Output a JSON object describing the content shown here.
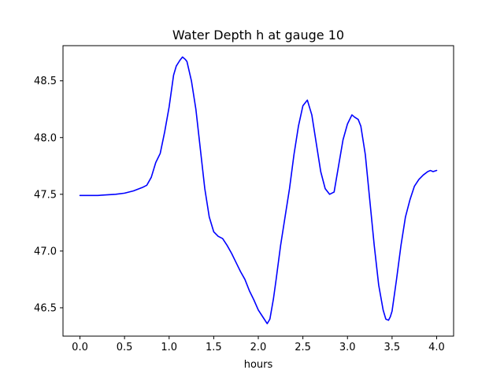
{
  "chart_data": {
    "type": "line",
    "title": "Water Depth h at gauge 10",
    "xlabel": "hours",
    "ylabel": "",
    "xlim": [
      -0.19,
      4.19
    ],
    "ylim": [
      46.25,
      48.81
    ],
    "xticks": [
      0.0,
      0.5,
      1.0,
      1.5,
      2.0,
      2.5,
      3.0,
      3.5,
      4.0
    ],
    "xtick_labels": [
      "0.0",
      "0.5",
      "1.0",
      "1.5",
      "2.0",
      "2.5",
      "3.0",
      "3.5",
      "4.0"
    ],
    "yticks": [
      46.5,
      47.0,
      47.5,
      48.0,
      48.5
    ],
    "ytick_labels": [
      "46.5",
      "47.0",
      "47.5",
      "48.0",
      "48.5"
    ],
    "grid": false,
    "legend": "none",
    "series": [
      {
        "color": "#0000ff",
        "x": [
          0.0,
          0.2,
          0.4,
          0.5,
          0.6,
          0.7,
          0.75,
          0.8,
          0.85,
          0.9,
          0.95,
          1.0,
          1.05,
          1.08,
          1.12,
          1.15,
          1.18,
          1.2,
          1.25,
          1.3,
          1.35,
          1.4,
          1.45,
          1.5,
          1.55,
          1.6,
          1.65,
          1.7,
          1.75,
          1.8,
          1.85,
          1.9,
          1.95,
          2.0,
          2.05,
          2.1,
          2.13,
          2.17,
          2.2,
          2.25,
          2.3,
          2.35,
          2.4,
          2.45,
          2.5,
          2.55,
          2.6,
          2.65,
          2.7,
          2.75,
          2.8,
          2.85,
          2.9,
          2.95,
          3.0,
          3.05,
          3.08,
          3.12,
          3.15,
          3.2,
          3.25,
          3.3,
          3.35,
          3.4,
          3.43,
          3.46,
          3.48,
          3.5,
          3.55,
          3.6,
          3.65,
          3.7,
          3.75,
          3.8,
          3.85,
          3.9,
          3.93,
          3.96,
          4.0
        ],
        "y": [
          47.49,
          47.49,
          47.5,
          47.51,
          47.53,
          47.56,
          47.58,
          47.65,
          47.78,
          47.86,
          48.05,
          48.27,
          48.55,
          48.63,
          48.68,
          48.71,
          48.69,
          48.67,
          48.5,
          48.25,
          47.9,
          47.55,
          47.3,
          47.17,
          47.13,
          47.11,
          47.05,
          46.98,
          46.9,
          46.82,
          46.75,
          46.65,
          46.57,
          46.48,
          46.42,
          46.36,
          46.4,
          46.58,
          46.75,
          47.05,
          47.3,
          47.55,
          47.85,
          48.1,
          48.28,
          48.33,
          48.2,
          47.95,
          47.7,
          47.55,
          47.5,
          47.52,
          47.75,
          47.98,
          48.12,
          48.2,
          48.18,
          48.16,
          48.1,
          47.85,
          47.45,
          47.05,
          46.7,
          46.48,
          46.4,
          46.39,
          46.42,
          46.47,
          46.75,
          47.05,
          47.3,
          47.45,
          47.57,
          47.63,
          47.67,
          47.7,
          47.71,
          47.7,
          47.71
        ]
      }
    ]
  }
}
